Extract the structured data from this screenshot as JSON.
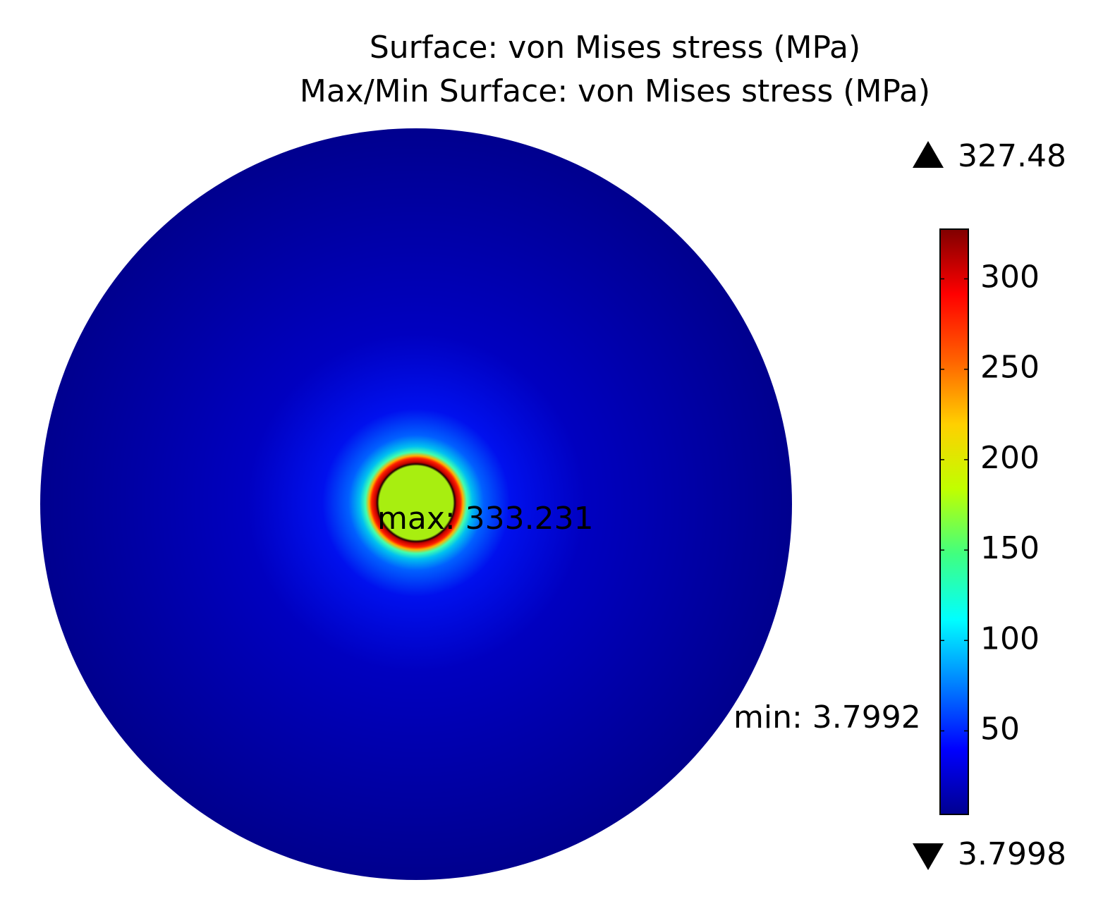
{
  "chart_data": {
    "type": "surface",
    "title": "Surface: von Mises stress (MPa)",
    "subtitle": "Max/Min Surface: von Mises stress (MPa)",
    "annotations": [
      "max: 333.231",
      "min: 3.7992"
    ],
    "clim": [
      3.7998,
      327.48
    ],
    "cticks": [
      50,
      100,
      150,
      200,
      250,
      300
    ],
    "colormap": [
      "#000090",
      "#0000ff",
      "#0080ff",
      "#00ffff",
      "#40ff80",
      "#c0ff00",
      "#ffd000",
      "#ff6000",
      "#ff0000",
      "#800000"
    ]
  }
}
